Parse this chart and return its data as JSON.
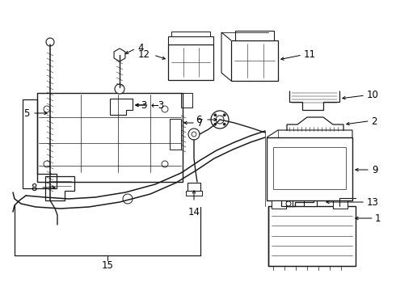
{
  "bg_color": "#ffffff",
  "line_color": "#1a1a1a",
  "text_color": "#000000",
  "fig_width": 4.9,
  "fig_height": 3.6,
  "dpi": 100,
  "label_fontsize": 8.5,
  "label_fontsize_sm": 7.5
}
